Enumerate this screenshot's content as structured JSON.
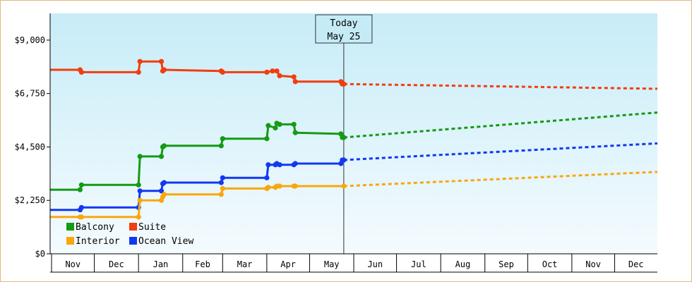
{
  "chart_data": {
    "type": "line",
    "title": "",
    "xlabel": "",
    "ylabel": "",
    "ylim": [
      0,
      10125
    ],
    "y_ticks": [
      {
        "value": 0,
        "label": "$0"
      },
      {
        "value": 2250,
        "label": "$2,250"
      },
      {
        "value": 4500,
        "label": "$4,500"
      },
      {
        "value": 6750,
        "label": "$6,750"
      },
      {
        "value": 9000,
        "label": "$9,000"
      }
    ],
    "x_range": [
      "2017-10-31",
      "2018-12-31"
    ],
    "months": [
      {
        "label": "Nov",
        "start": "2017-11-01",
        "end": "2017-12-01"
      },
      {
        "label": "Dec",
        "start": "2017-12-01",
        "end": "2018-01-01"
      },
      {
        "label": "Jan",
        "start": "2018-01-01",
        "end": "2018-02-01"
      },
      {
        "label": "Feb",
        "start": "2018-02-01",
        "end": "2018-03-01"
      },
      {
        "label": "Mar",
        "start": "2018-03-01",
        "end": "2018-04-01"
      },
      {
        "label": "Apr",
        "start": "2018-04-01",
        "end": "2018-05-01"
      },
      {
        "label": "May",
        "start": "2018-05-01",
        "end": "2018-06-01"
      },
      {
        "label": "Jun",
        "start": "2018-06-01",
        "end": "2018-07-01"
      },
      {
        "label": "Jul",
        "start": "2018-07-01",
        "end": "2018-08-01"
      },
      {
        "label": "Aug",
        "start": "2018-08-01",
        "end": "2018-09-01"
      },
      {
        "label": "Sep",
        "start": "2018-09-01",
        "end": "2018-10-01"
      },
      {
        "label": "Oct",
        "start": "2018-10-01",
        "end": "2018-11-01"
      },
      {
        "label": "Nov",
        "start": "2018-11-01",
        "end": "2018-12-01"
      },
      {
        "label": "Dec",
        "start": "2018-12-01",
        "end": "2018-12-31"
      }
    ],
    "today": {
      "date": "2018-05-25",
      "line1": "Today",
      "line2": "May 25"
    },
    "grid": false,
    "legend_position": "bottom-left",
    "series": [
      {
        "name": "Balcony",
        "color": "#159a15",
        "points": [
          [
            "2017-10-31",
            2700
          ],
          [
            "2017-11-21",
            2700
          ],
          [
            "2017-11-22",
            2900
          ],
          [
            "2018-01-01",
            2900
          ],
          [
            "2018-01-02",
            4100
          ],
          [
            "2018-01-17",
            4100
          ],
          [
            "2018-01-18",
            4500
          ],
          [
            "2018-01-19",
            4550
          ],
          [
            "2018-02-28",
            4550
          ],
          [
            "2018-03-01",
            4850
          ],
          [
            "2018-04-01",
            4850
          ],
          [
            "2018-04-02",
            5400
          ],
          [
            "2018-04-07",
            5300
          ],
          [
            "2018-04-08",
            5500
          ],
          [
            "2018-04-10",
            5450
          ],
          [
            "2018-04-20",
            5450
          ],
          [
            "2018-04-21",
            5100
          ],
          [
            "2018-05-23",
            5050
          ],
          [
            "2018-05-24",
            4900
          ],
          [
            "2018-05-25",
            4900
          ]
        ],
        "forecast": [
          [
            "2018-05-25",
            4900
          ],
          [
            "2018-12-31",
            5950
          ]
        ]
      },
      {
        "name": "Suite",
        "color": "#f23d0e",
        "points": [
          [
            "2017-10-31",
            7750
          ],
          [
            "2017-11-21",
            7750
          ],
          [
            "2017-11-22",
            7650
          ],
          [
            "2018-01-01",
            7650
          ],
          [
            "2018-01-02",
            8100
          ],
          [
            "2018-01-17",
            8100
          ],
          [
            "2018-01-18",
            7700
          ],
          [
            "2018-01-19",
            7750
          ],
          [
            "2018-02-28",
            7700
          ],
          [
            "2018-03-01",
            7650
          ],
          [
            "2018-04-01",
            7650
          ],
          [
            "2018-04-05",
            7700
          ],
          [
            "2018-04-08",
            7700
          ],
          [
            "2018-04-10",
            7500
          ],
          [
            "2018-04-20",
            7450
          ],
          [
            "2018-04-21",
            7250
          ],
          [
            "2018-05-23",
            7250
          ],
          [
            "2018-05-24",
            7150
          ],
          [
            "2018-05-25",
            7150
          ]
        ],
        "forecast": [
          [
            "2018-05-25",
            7150
          ],
          [
            "2018-12-31",
            6950
          ]
        ]
      },
      {
        "name": "Interior",
        "color": "#f9a70d",
        "points": [
          [
            "2017-10-31",
            1550
          ],
          [
            "2017-11-21",
            1550
          ],
          [
            "2017-11-22",
            1550
          ],
          [
            "2018-01-01",
            1550
          ],
          [
            "2018-01-02",
            2250
          ],
          [
            "2018-01-17",
            2250
          ],
          [
            "2018-01-18",
            2400
          ],
          [
            "2018-01-19",
            2500
          ],
          [
            "2018-02-28",
            2500
          ],
          [
            "2018-03-01",
            2750
          ],
          [
            "2018-04-01",
            2750
          ],
          [
            "2018-04-02",
            2800
          ],
          [
            "2018-04-07",
            2800
          ],
          [
            "2018-04-08",
            2850
          ],
          [
            "2018-04-10",
            2850
          ],
          [
            "2018-04-20",
            2850
          ],
          [
            "2018-04-21",
            2850
          ],
          [
            "2018-05-25",
            2850
          ]
        ],
        "forecast": [
          [
            "2018-05-25",
            2850
          ],
          [
            "2018-12-31",
            3450
          ]
        ]
      },
      {
        "name": "Ocean View",
        "color": "#1238f2",
        "points": [
          [
            "2017-10-31",
            1850
          ],
          [
            "2017-11-21",
            1850
          ],
          [
            "2017-11-22",
            1950
          ],
          [
            "2018-01-01",
            1950
          ],
          [
            "2018-01-02",
            2650
          ],
          [
            "2018-01-17",
            2650
          ],
          [
            "2018-01-18",
            2950
          ],
          [
            "2018-01-19",
            3000
          ],
          [
            "2018-02-28",
            3000
          ],
          [
            "2018-03-01",
            3200
          ],
          [
            "2018-04-01",
            3200
          ],
          [
            "2018-04-02",
            3750
          ],
          [
            "2018-04-07",
            3750
          ],
          [
            "2018-04-08",
            3800
          ],
          [
            "2018-04-10",
            3750
          ],
          [
            "2018-04-20",
            3750
          ],
          [
            "2018-04-21",
            3800
          ],
          [
            "2018-05-23",
            3800
          ],
          [
            "2018-05-24",
            3950
          ],
          [
            "2018-05-25",
            3950
          ]
        ],
        "forecast": [
          [
            "2018-05-25",
            3950
          ],
          [
            "2018-12-31",
            4650
          ]
        ]
      }
    ]
  }
}
